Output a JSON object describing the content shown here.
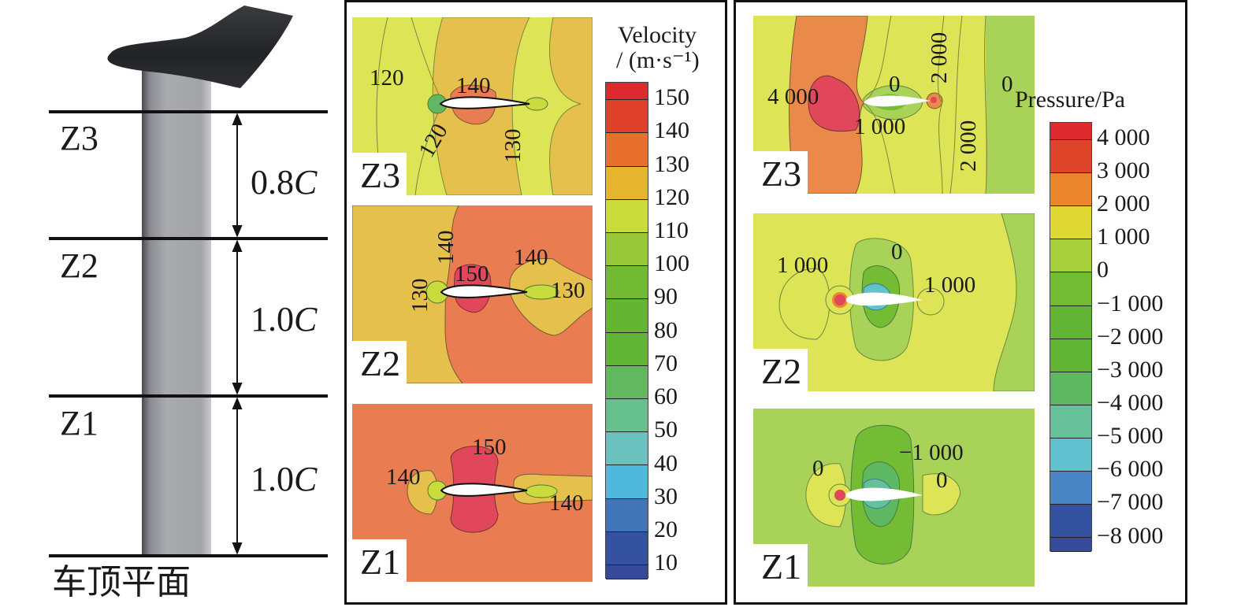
{
  "schematic": {
    "zones": [
      "Z3",
      "Z2",
      "Z1"
    ],
    "spacings": [
      {
        "value": "0.8",
        "unit": "C"
      },
      {
        "value": "1.0",
        "unit": "C"
      },
      {
        "value": "1.0",
        "unit": "C"
      }
    ],
    "base_label": "车顶平面"
  },
  "velocity_panel": {
    "colorbar": {
      "title_line1": "Velocity",
      "title_line2": "/ (m·s⁻¹)",
      "ticks": [
        "150",
        "140",
        "130",
        "120",
        "110",
        "100",
        "90",
        "80",
        "70",
        "60",
        "50",
        "40",
        "30",
        "20",
        "10"
      ],
      "colors": [
        "#dc2a2f",
        "#df412b",
        "#e6702c",
        "#e5b52e",
        "#cadc3c",
        "#98c83a",
        "#72ba34",
        "#65b535",
        "#62b534",
        "#62b860",
        "#66c08e",
        "#6bc1bd",
        "#4fb8dd",
        "#4274b8",
        "#3552a0",
        "#354a9a"
      ]
    },
    "contours": [
      {
        "zone": "Z3",
        "labels": [
          "120",
          "140",
          "120",
          "130"
        ],
        "background": "#dde455"
      },
      {
        "zone": "Z2",
        "labels": [
          "140",
          "150",
          "140",
          "130",
          "130"
        ],
        "background": "#e97c50"
      },
      {
        "zone": "Z1",
        "labels": [
          "150",
          "140",
          "140"
        ],
        "background": "#e97c50"
      }
    ]
  },
  "pressure_panel": {
    "colorbar": {
      "title": "Pressure/Pa",
      "ticks": [
        "4 000",
        "3 000",
        "2 000",
        "1 000",
        "0",
        "−1 000",
        "−2 000",
        "−3 000",
        "−4 000",
        "−5 000",
        "−6 000",
        "−7 000",
        "−8 000"
      ],
      "colors": [
        "#dc2a2f",
        "#df452b",
        "#ea862e",
        "#e0d834",
        "#a6cf3b",
        "#74bc34",
        "#62b534",
        "#61b534",
        "#5eb761",
        "#66c19b",
        "#62c1cf",
        "#4a86c6",
        "#3552a0",
        "#354a9a"
      ]
    },
    "contours": [
      {
        "zone": "Z3",
        "labels": [
          "4 000",
          "0",
          "2 000",
          "0",
          "1 000",
          "2 000"
        ],
        "background": "#dde455"
      },
      {
        "zone": "Z2",
        "labels": [
          "1 000",
          "0",
          "1 000"
        ],
        "background": "#dde455"
      },
      {
        "zone": "Z1",
        "labels": [
          "0",
          "−1 000",
          "0"
        ],
        "background": "#a9d259"
      }
    ]
  },
  "chart_data": {
    "type": "heatmap",
    "title": "",
    "panels": [
      {
        "quantity": "Velocity",
        "unit": "m·s⁻¹",
        "colorbar_levels": [
          10,
          20,
          30,
          40,
          50,
          60,
          70,
          80,
          90,
          100,
          110,
          120,
          130,
          140,
          150
        ],
        "range": [
          10,
          150
        ],
        "slices": [
          {
            "zone": "Z3",
            "contour_labels": [
              120,
              140,
              120,
              130
            ]
          },
          {
            "zone": "Z2",
            "contour_labels": [
              140,
              150,
              140,
              130,
              130
            ]
          },
          {
            "zone": "Z1",
            "contour_labels": [
              150,
              140,
              140
            ]
          }
        ]
      },
      {
        "quantity": "Pressure",
        "unit": "Pa",
        "colorbar_levels": [
          -8000,
          -7000,
          -6000,
          -5000,
          -4000,
          -3000,
          -2000,
          -1000,
          0,
          1000,
          2000,
          3000,
          4000
        ],
        "range": [
          -8000,
          4000
        ],
        "slices": [
          {
            "zone": "Z3",
            "contour_labels": [
              4000,
              0,
              2000,
              0,
              1000,
              2000
            ]
          },
          {
            "zone": "Z2",
            "contour_labels": [
              1000,
              0,
              1000
            ]
          },
          {
            "zone": "Z1",
            "contour_labels": [
              0,
              -1000,
              0
            ]
          }
        ]
      }
    ],
    "slice_spacing": [
      "0.8C",
      "1.0C",
      "1.0C"
    ]
  }
}
